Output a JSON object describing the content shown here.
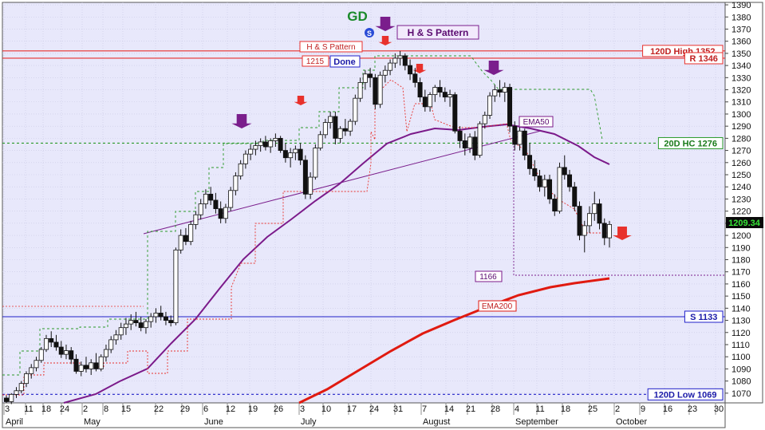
{
  "chart_data": {
    "type": "candlestick",
    "title": "",
    "ylim": [
      1062,
      1392
    ],
    "y_ticks": [
      1070,
      1080,
      1090,
      1100,
      1110,
      1120,
      1130,
      1140,
      1150,
      1160,
      1170,
      1180,
      1190,
      1200,
      1210,
      1220,
      1230,
      1240,
      1250,
      1260,
      1270,
      1280,
      1290,
      1300,
      1310,
      1320,
      1330,
      1340,
      1350,
      1360,
      1370,
      1380,
      1390
    ],
    "x_ticks": [
      "3",
      "11",
      "18",
      "24",
      "2",
      "8",
      "15",
      "22",
      "29",
      "6",
      "12",
      "19",
      "26",
      "3",
      "10",
      "17",
      "24",
      "31",
      "7",
      "14",
      "21",
      "28",
      "4",
      "11",
      "18",
      "25",
      "2",
      "9",
      "16",
      "23",
      "30"
    ],
    "x_months": [
      "April",
      "May",
      "June",
      "July",
      "August",
      "September",
      "October"
    ],
    "last_price": "1209.34",
    "grid": true,
    "colors": {
      "background": "#e8e8fb",
      "resistance": "#e8312c",
      "support": "#2020c8",
      "ema50": "#7b1a8a",
      "ema200": "#e01a10",
      "trailing_stop": "#e8312c",
      "hc20": "#2a9a2a",
      "pattern": "#7a1e8c"
    },
    "levels": [
      {
        "label": "120D High 1352",
        "value": 1352
      },
      {
        "label": "R 1346",
        "value": 1346
      },
      {
        "label": "20D HC 1276",
        "value": 1276
      },
      {
        "label": "S 1133",
        "value": 1133
      },
      {
        "label": "120D Low 1069",
        "value": 1069
      }
    ],
    "annotations": {
      "gd": "GD",
      "gd_badge": "S",
      "hs_pattern_main": "H & S Pattern",
      "hs_pattern_small": "H & S Pattern",
      "price_1215": "1215",
      "done": "Done",
      "ema50": "EMA50",
      "ema200": "EMA200",
      "target_1166": "1166"
    },
    "candles": [
      [
        1066,
        1068,
        1062,
        1063
      ],
      [
        1063,
        1070,
        1061,
        1069
      ],
      [
        1069,
        1075,
        1066,
        1072
      ],
      [
        1072,
        1080,
        1070,
        1078
      ],
      [
        1078,
        1088,
        1075,
        1086
      ],
      [
        1086,
        1094,
        1082,
        1091
      ],
      [
        1091,
        1100,
        1088,
        1097
      ],
      [
        1097,
        1108,
        1095,
        1106
      ],
      [
        1106,
        1118,
        1104,
        1115
      ],
      [
        1115,
        1121,
        1108,
        1112
      ],
      [
        1112,
        1118,
        1105,
        1108
      ],
      [
        1108,
        1113,
        1099,
        1102
      ],
      [
        1102,
        1110,
        1098,
        1105
      ],
      [
        1105,
        1108,
        1094,
        1098
      ],
      [
        1098,
        1102,
        1086,
        1088
      ],
      [
        1088,
        1096,
        1084,
        1093
      ],
      [
        1093,
        1100,
        1087,
        1090
      ],
      [
        1090,
        1098,
        1085,
        1095
      ],
      [
        1095,
        1103,
        1088,
        1090
      ],
      [
        1090,
        1102,
        1088,
        1100
      ],
      [
        1100,
        1110,
        1096,
        1106
      ],
      [
        1106,
        1117,
        1103,
        1114
      ],
      [
        1114,
        1122,
        1110,
        1118
      ],
      [
        1118,
        1128,
        1114,
        1124
      ],
      [
        1124,
        1132,
        1118,
        1127
      ],
      [
        1127,
        1135,
        1122,
        1130
      ],
      [
        1130,
        1137,
        1125,
        1128
      ],
      [
        1128,
        1133,
        1121,
        1124
      ],
      [
        1124,
        1131,
        1119,
        1129
      ],
      [
        1129,
        1136,
        1124,
        1133
      ],
      [
        1133,
        1140,
        1128,
        1136
      ],
      [
        1136,
        1142,
        1130,
        1133
      ],
      [
        1133,
        1137,
        1126,
        1130
      ],
      [
        1130,
        1134,
        1125,
        1128
      ],
      [
        1128,
        1190,
        1126,
        1188
      ],
      [
        1188,
        1205,
        1185,
        1200
      ],
      [
        1200,
        1206,
        1192,
        1195
      ],
      [
        1195,
        1212,
        1192,
        1209
      ],
      [
        1209,
        1220,
        1205,
        1217
      ],
      [
        1217,
        1230,
        1213,
        1226
      ],
      [
        1226,
        1238,
        1222,
        1234
      ],
      [
        1234,
        1240,
        1225,
        1229
      ],
      [
        1229,
        1235,
        1218,
        1222
      ],
      [
        1222,
        1228,
        1210,
        1214
      ],
      [
        1214,
        1226,
        1210,
        1223
      ],
      [
        1223,
        1240,
        1220,
        1237
      ],
      [
        1237,
        1252,
        1233,
        1249
      ],
      [
        1249,
        1262,
        1246,
        1259
      ],
      [
        1259,
        1270,
        1255,
        1267
      ],
      [
        1267,
        1275,
        1262,
        1271
      ],
      [
        1271,
        1278,
        1266,
        1274
      ],
      [
        1274,
        1280,
        1269,
        1277
      ],
      [
        1277,
        1282,
        1270,
        1273
      ],
      [
        1273,
        1280,
        1268,
        1278
      ],
      [
        1278,
        1284,
        1273,
        1280
      ],
      [
        1280,
        1282,
        1268,
        1270
      ],
      [
        1270,
        1276,
        1260,
        1264
      ],
      [
        1264,
        1272,
        1256,
        1268
      ],
      [
        1268,
        1274,
        1262,
        1271
      ],
      [
        1271,
        1276,
        1258,
        1262
      ],
      [
        1262,
        1266,
        1230,
        1234
      ],
      [
        1234,
        1252,
        1230,
        1248
      ],
      [
        1248,
        1275,
        1246,
        1272
      ],
      [
        1272,
        1286,
        1270,
        1283
      ],
      [
        1283,
        1296,
        1280,
        1293
      ],
      [
        1293,
        1302,
        1288,
        1298
      ],
      [
        1298,
        1302,
        1275,
        1280
      ],
      [
        1280,
        1290,
        1276,
        1288
      ],
      [
        1288,
        1296,
        1282,
        1286
      ],
      [
        1286,
        1296,
        1282,
        1294
      ],
      [
        1294,
        1316,
        1291,
        1313
      ],
      [
        1313,
        1330,
        1310,
        1326
      ],
      [
        1326,
        1336,
        1320,
        1333
      ],
      [
        1333,
        1338,
        1322,
        1330
      ],
      [
        1330,
        1333,
        1304,
        1308
      ],
      [
        1308,
        1335,
        1305,
        1332
      ],
      [
        1332,
        1340,
        1326,
        1336
      ],
      [
        1336,
        1345,
        1332,
        1342
      ],
      [
        1342,
        1350,
        1338,
        1346
      ],
      [
        1346,
        1352,
        1340,
        1348
      ],
      [
        1348,
        1350,
        1336,
        1340
      ],
      [
        1340,
        1345,
        1328,
        1333
      ],
      [
        1333,
        1338,
        1322,
        1326
      ],
      [
        1326,
        1330,
        1310,
        1314
      ],
      [
        1314,
        1320,
        1302,
        1306
      ],
      [
        1306,
        1318,
        1302,
        1316
      ],
      [
        1316,
        1324,
        1310,
        1322
      ],
      [
        1322,
        1328,
        1314,
        1318
      ],
      [
        1318,
        1322,
        1310,
        1314
      ],
      [
        1314,
        1320,
        1306,
        1316
      ],
      [
        1316,
        1318,
        1284,
        1286
      ],
      [
        1286,
        1290,
        1272,
        1278
      ],
      [
        1278,
        1284,
        1266,
        1272
      ],
      [
        1272,
        1284,
        1268,
        1281
      ],
      [
        1281,
        1286,
        1262,
        1266
      ],
      [
        1266,
        1294,
        1264,
        1292
      ],
      [
        1292,
        1302,
        1288,
        1299
      ],
      [
        1299,
        1318,
        1296,
        1315
      ],
      [
        1315,
        1324,
        1310,
        1320
      ],
      [
        1320,
        1328,
        1314,
        1318
      ],
      [
        1318,
        1326,
        1310,
        1322
      ],
      [
        1322,
        1325,
        1285,
        1290
      ],
      [
        1290,
        1294,
        1270,
        1275
      ],
      [
        1275,
        1290,
        1270,
        1286
      ],
      [
        1286,
        1288,
        1262,
        1266
      ],
      [
        1266,
        1276,
        1250,
        1255
      ],
      [
        1255,
        1262,
        1245,
        1249
      ],
      [
        1249,
        1254,
        1236,
        1240
      ],
      [
        1240,
        1250,
        1232,
        1246
      ],
      [
        1246,
        1250,
        1226,
        1230
      ],
      [
        1230,
        1234,
        1216,
        1220
      ],
      [
        1220,
        1260,
        1218,
        1256
      ],
      [
        1256,
        1266,
        1246,
        1250
      ],
      [
        1250,
        1254,
        1236,
        1240
      ],
      [
        1240,
        1244,
        1220,
        1224
      ],
      [
        1224,
        1228,
        1196,
        1200
      ],
      [
        1200,
        1212,
        1186,
        1208
      ],
      [
        1208,
        1224,
        1202,
        1218
      ],
      [
        1218,
        1236,
        1212,
        1226
      ],
      [
        1226,
        1230,
        1205,
        1210
      ],
      [
        1210,
        1214,
        1192,
        1198
      ],
      [
        1198,
        1212,
        1190,
        1209
      ]
    ]
  }
}
